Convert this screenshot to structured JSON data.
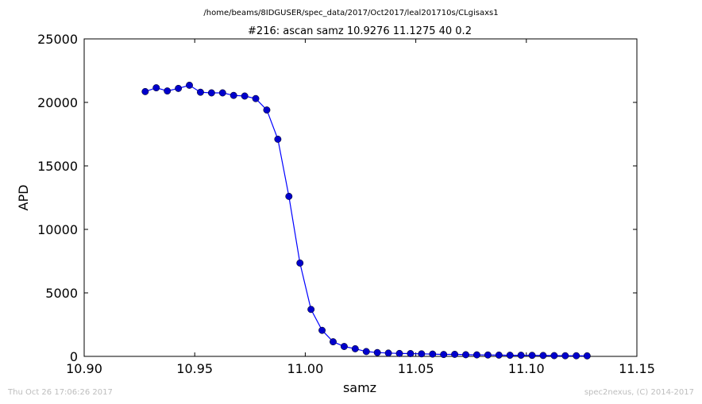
{
  "header": {
    "suptitle": "/home/beams/8IDGUSER/spec_data/2017/Oct2017/leal201710s/CLgisaxs1"
  },
  "footer": {
    "timestamp": "Thu Oct 26 17:06:26 2017",
    "credit": "spec2nexus, (C) 2014-2017"
  },
  "colors": {
    "series": "#0000ff",
    "marker_fill": "#0000cc",
    "axes": "#000000",
    "footer_text": "#bdbdbd"
  },
  "chart_data": {
    "type": "line",
    "title": "#216: ascan  samz 10.9276 11.1275  40 0.2",
    "xlabel": "samz",
    "ylabel": "APD",
    "xlim": [
      10.9,
      11.15
    ],
    "ylim": [
      0,
      25000
    ],
    "xticks": [
      "10.90",
      "10.95",
      "11.00",
      "11.05",
      "11.10",
      "11.15"
    ],
    "yticks": [
      "0",
      "5000",
      "10000",
      "15000",
      "20000",
      "25000"
    ],
    "grid": false,
    "legend": "none",
    "x": [
      10.9276,
      10.9326,
      10.9376,
      10.9426,
      10.9476,
      10.9526,
      10.9576,
      10.9626,
      10.9676,
      10.9726,
      10.9776,
      10.9826,
      10.9876,
      10.9926,
      10.9976,
      11.0026,
      11.0076,
      11.0126,
      11.0176,
      11.0226,
      11.0276,
      11.0326,
      11.0376,
      11.0426,
      11.0476,
      11.0526,
      11.0576,
      11.0626,
      11.0676,
      11.0726,
      11.0776,
      11.0826,
      11.0876,
      11.0926,
      11.0976,
      11.1026,
      11.1076,
      11.1126,
      11.1176,
      11.1226,
      11.1275
    ],
    "series": [
      {
        "values": [
          20850,
          21150,
          20900,
          21100,
          21350,
          20800,
          20750,
          20750,
          20550,
          20500,
          20300,
          19400,
          17100,
          12600,
          7350,
          3700,
          2050,
          1150,
          780,
          600,
          380,
          300,
          260,
          230,
          220,
          200,
          180,
          150,
          160,
          130,
          120,
          110,
          100,
          90,
          90,
          80,
          70,
          60,
          50,
          50,
          40
        ]
      }
    ]
  }
}
